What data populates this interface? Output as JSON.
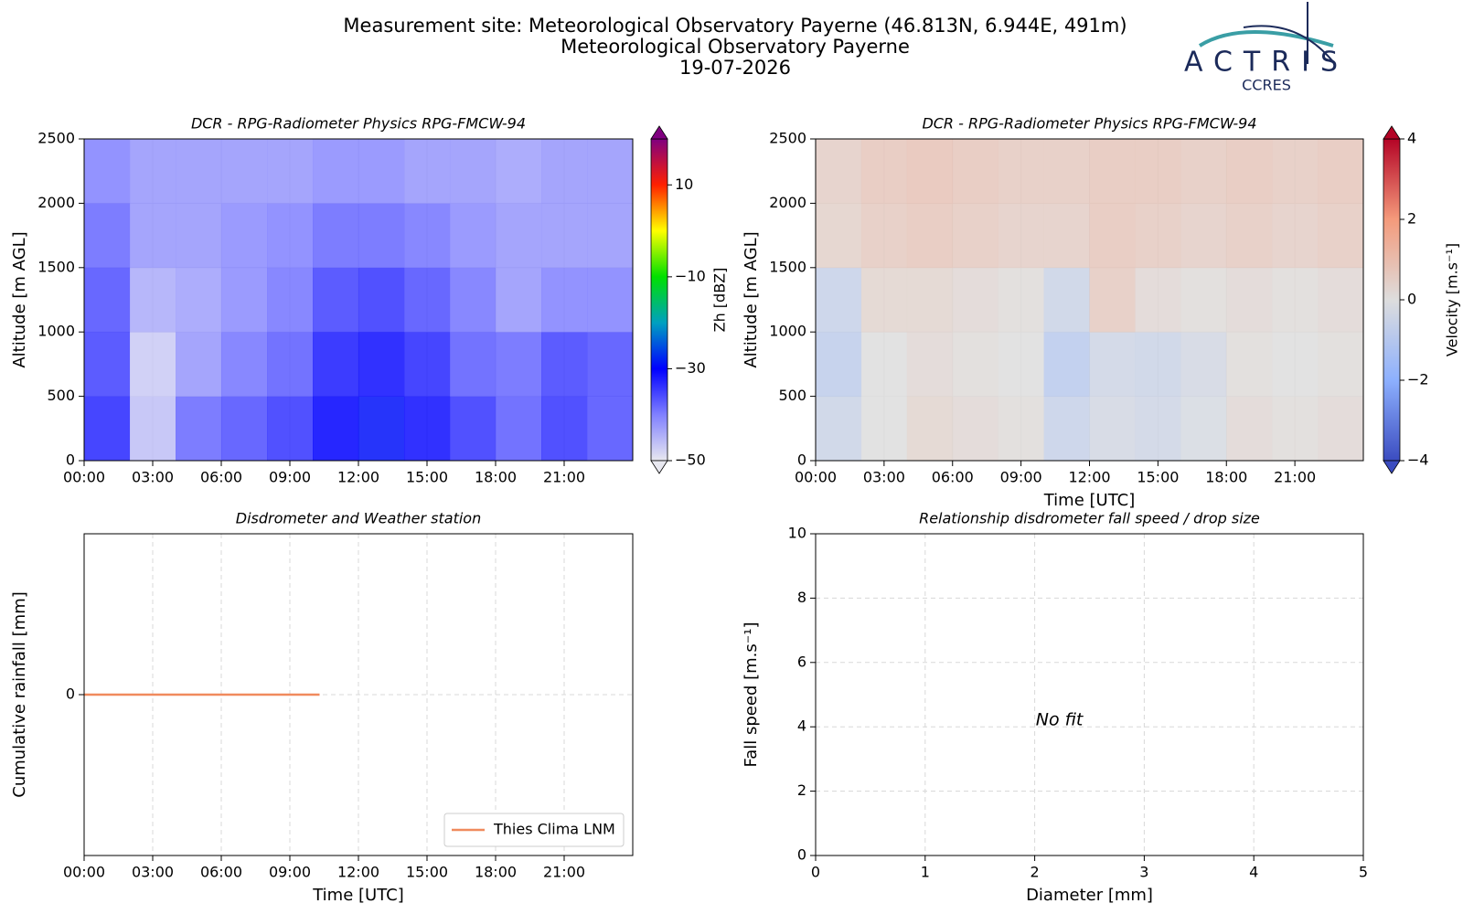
{
  "header": {
    "title_lines": [
      "Measurement site: Meteorological Observatory Payerne (46.813N, 6.944E, 491m)",
      "Meteorological Observatory Payerne",
      "19-07-2026"
    ],
    "logo_text": "ACTRIS",
    "logo_subtext": "CCRES"
  },
  "chart_data": [
    {
      "type": "heatmap",
      "title": "DCR - RPG-Radiometer Physics RPG-FMCW-94",
      "y_label": "Altitude [m AGL]",
      "x": [
        1,
        3,
        5,
        7,
        9,
        11,
        13,
        15,
        17,
        19,
        21,
        23
      ],
      "y": [
        250,
        750,
        1250,
        1750,
        2250
      ],
      "z": [
        [
          -33,
          -46,
          -38,
          -36,
          -34,
          -30,
          -29,
          -31,
          -34,
          -37,
          -34,
          -36
        ],
        [
          -35,
          -47,
          -42,
          -39,
          -37,
          -32,
          -31,
          -33,
          -37,
          -38,
          -35,
          -36
        ],
        [
          -36,
          -44,
          -43,
          -41,
          -39,
          -35,
          -34,
          -36,
          -39,
          -42,
          -40,
          -40
        ],
        [
          -38,
          -42,
          -42,
          -41,
          -40,
          -38,
          -38,
          -39,
          -41,
          -42,
          -42,
          -42
        ],
        [
          -40,
          -42,
          -42,
          -42,
          -42,
          -41,
          -41,
          -42,
          -42,
          -43,
          -42,
          -42
        ]
      ],
      "xlim": [
        0,
        24
      ],
      "ylim": [
        0,
        2500
      ],
      "xticks": [
        {
          "value": 0,
          "label": "00:00"
        },
        {
          "value": 3,
          "label": "03:00"
        },
        {
          "value": 6,
          "label": "06:00"
        },
        {
          "value": 9,
          "label": "09:00"
        },
        {
          "value": 12,
          "label": "12:00"
        },
        {
          "value": 15,
          "label": "15:00"
        },
        {
          "value": 18,
          "label": "18:00"
        },
        {
          "value": 21,
          "label": "21:00"
        }
      ],
      "yticks": [
        0,
        500,
        1000,
        1500,
        2000,
        2500
      ],
      "grid": true,
      "colorbar": {
        "label": "Zh [dBZ]",
        "lim": [
          -50,
          20
        ],
        "ticks": [
          {
            "value": -50,
            "label": "−50"
          },
          {
            "value": -30,
            "label": "−30"
          },
          {
            "value": -10,
            "label": "−10"
          },
          10
        ],
        "colors": [
          "#e8e8f0",
          "#8080ff",
          "#0000ff",
          "#00a0c0",
          "#00e000",
          "#ffff00",
          "#ff2000",
          "#800080"
        ]
      }
    },
    {
      "type": "heatmap",
      "title": "DCR - RPG-Radiometer Physics RPG-FMCW-94",
      "y_label": "Altitude [m AGL]",
      "x_label": "Time [UTC]",
      "x": [
        1,
        3,
        5,
        7,
        9,
        11,
        13,
        15,
        17,
        19,
        21,
        23
      ],
      "y": [
        250,
        750,
        1250,
        1750,
        2250
      ],
      "z": [
        [
          -0.5,
          0,
          0.3,
          0.2,
          0.1,
          -0.6,
          -0.3,
          -0.4,
          -0.2,
          0.2,
          0.1,
          0.2
        ],
        [
          -0.8,
          0,
          0.2,
          0.1,
          0,
          -0.9,
          -0.4,
          -0.5,
          -0.3,
          0.1,
          0,
          0.1
        ],
        [
          -0.6,
          0.3,
          0.3,
          0.2,
          0.1,
          -0.5,
          0.6,
          0.2,
          0.1,
          0.2,
          0.1,
          0.2
        ],
        [
          0.4,
          0.6,
          0.7,
          0.6,
          0.5,
          0.5,
          0.7,
          0.6,
          0.5,
          0.6,
          0.5,
          0.6
        ],
        [
          0.5,
          0.7,
          0.8,
          0.7,
          0.6,
          0.6,
          0.7,
          0.7,
          0.6,
          0.7,
          0.6,
          0.7
        ]
      ],
      "xlim": [
        0,
        24
      ],
      "ylim": [
        0,
        2500
      ],
      "xticks": [
        {
          "value": 0,
          "label": "00:00"
        },
        {
          "value": 3,
          "label": "03:00"
        },
        {
          "value": 6,
          "label": "06:00"
        },
        {
          "value": 9,
          "label": "09:00"
        },
        {
          "value": 12,
          "label": "12:00"
        },
        {
          "value": 15,
          "label": "15:00"
        },
        {
          "value": 18,
          "label": "18:00"
        },
        {
          "value": 21,
          "label": "21:00"
        }
      ],
      "yticks": [
        0,
        500,
        1000,
        1500,
        2000,
        2500
      ],
      "grid": true,
      "colorbar": {
        "label": "Velocity [m.s⁻¹]",
        "lim": [
          -4,
          4
        ],
        "ticks": [
          {
            "value": -4,
            "label": "−4"
          },
          {
            "value": -2,
            "label": "−2"
          },
          0,
          2,
          4
        ],
        "colors": [
          "#3b4cc0",
          "#8db0fe",
          "#dddddd",
          "#f49a7b",
          "#b40426"
        ]
      }
    },
    {
      "type": "line",
      "title": "Disdrometer and Weather station",
      "y_label": "Cumulative rainfall [mm]",
      "x_label": "Time [UTC]",
      "series": [
        {
          "name": "Thies Clima LNM",
          "color": "#f08a5d",
          "x": [
            0,
            10.3
          ],
          "values": [
            0,
            0
          ]
        }
      ],
      "xlim": [
        0,
        24
      ],
      "ylim": [
        -0.055,
        0.055
      ],
      "xticks": [
        {
          "value": 0,
          "label": "00:00"
        },
        {
          "value": 3,
          "label": "03:00"
        },
        {
          "value": 6,
          "label": "06:00"
        },
        {
          "value": 9,
          "label": "09:00"
        },
        {
          "value": 12,
          "label": "12:00"
        },
        {
          "value": 15,
          "label": "15:00"
        },
        {
          "value": 18,
          "label": "18:00"
        },
        {
          "value": 21,
          "label": "21:00"
        }
      ],
      "yticks": [
        0
      ],
      "grid": true,
      "grid_style": "dashed",
      "legend": "lower right"
    },
    {
      "type": "scatter",
      "title": "Relationship disdrometer fall speed / drop size",
      "y_label": "Fall speed [m.s⁻¹]",
      "x_label": "Diameter [mm]",
      "annotation": "No fit",
      "xlim": [
        0,
        5
      ],
      "ylim": [
        0,
        10
      ],
      "xticks": [
        0,
        1,
        2,
        3,
        4,
        5
      ],
      "yticks": [
        0,
        2,
        4,
        6,
        8,
        10
      ],
      "grid": true,
      "grid_style": "dashed"
    }
  ]
}
